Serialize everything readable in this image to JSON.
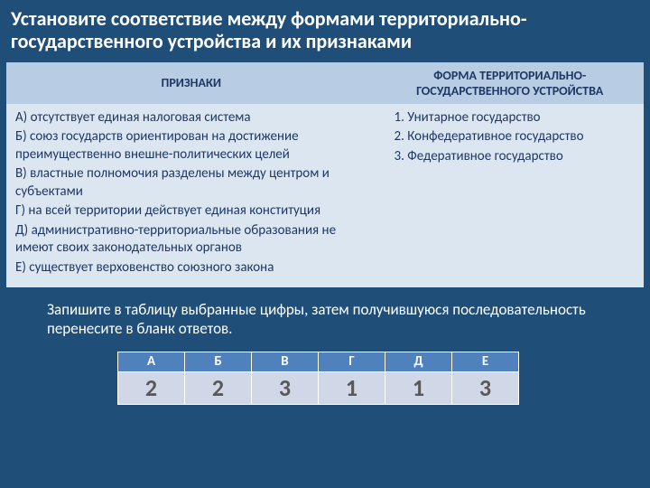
{
  "slide": {
    "background_color": "#1f4e79",
    "text_color": "#ffffff",
    "title": "Установите соответствие между  формами территориально-государственного устройства и их признаками"
  },
  "mainTable": {
    "header_bg": "#b8cce4",
    "cell_bg": "#dce6f1",
    "text_color": "#1f3864",
    "headers": {
      "left": "ПРИЗНАКИ",
      "right": "ФОРМА ТЕРРИТОРИАЛЬНО-ГОСУДАРСТВЕННОГО УСТРОЙСТВА"
    },
    "signs": {
      "a": "А) отсутствует единая налоговая система",
      "b": "Б) союз государств ориентирован на достижение преимущественно внешне-политических целей",
      "v": "В) властные полномочия разделены между центром и субъектами",
      "g": "Г) на всей территории действует единая конституция",
      "d": "Д) административно-территориальные образования не имеют своих законодательных органов",
      "e": "Е) существует верховенство союзного закона"
    },
    "forms": {
      "f1": "Унитарное государство",
      "f2": "Конфедеративное государство",
      "f3": "Федеративное государство"
    }
  },
  "instruction": "Запишите в таблицу выбранные цифры, затем получившуюся последовательность перенесите в бланк ответов.",
  "answerTable": {
    "header_bg": "#4f81bd",
    "header_color": "#ffffff",
    "cell_bg": "#d0d8e8",
    "cell_color": "#595959",
    "headers": {
      "a": "А",
      "b": "Б",
      "v": "В",
      "g": "Г",
      "d": "Д",
      "e": "Е"
    },
    "values": {
      "a": "2",
      "b": "2",
      "v": "3",
      "g": "1",
      "d": "1",
      "e": "3"
    }
  }
}
